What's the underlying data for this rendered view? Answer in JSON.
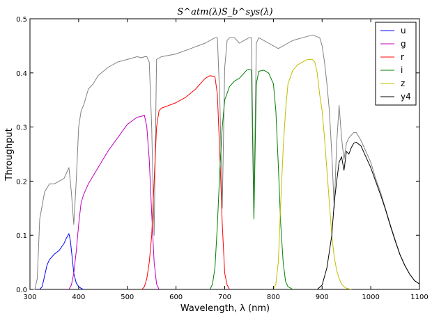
{
  "chart_data": {
    "type": "line",
    "title": "S^atm(λ)S_b^sys(λ)",
    "xlabel": "Wavelength, λ (nm)",
    "ylabel": "Throughput",
    "xlim": [
      300,
      1100
    ],
    "ylim": [
      0,
      0.5
    ],
    "xticks": [
      300,
      400,
      500,
      600,
      700,
      800,
      900,
      1000,
      1100
    ],
    "yticks": [
      0.0,
      0.1,
      0.2,
      0.3,
      0.4,
      0.5
    ],
    "xtick_labels": [
      "300",
      "400",
      "500",
      "600",
      "700",
      "800",
      "900",
      "1000",
      "1100"
    ],
    "ytick_labels": [
      "0.0",
      "0.1",
      "0.2",
      "0.3",
      "0.4",
      "0.5"
    ],
    "grid": false,
    "legend_position": "top-right",
    "series": [
      {
        "name": "u",
        "color": "#0000ff",
        "x": [
          320,
          325,
          330,
          335,
          340,
          350,
          360,
          370,
          375,
          380,
          383,
          386,
          390,
          395,
          400,
          405,
          410
        ],
        "y": [
          0.0,
          0.005,
          0.025,
          0.045,
          0.055,
          0.065,
          0.072,
          0.085,
          0.095,
          0.103,
          0.09,
          0.065,
          0.03,
          0.012,
          0.005,
          0.002,
          0.0
        ]
      },
      {
        "name": "g",
        "color": "#bf00bf",
        "x": [
          380,
          385,
          390,
          395,
          400,
          405,
          410,
          420,
          440,
          460,
          480,
          500,
          520,
          530,
          535,
          540,
          545,
          550,
          555,
          560,
          565
        ],
        "y": [
          0.0,
          0.008,
          0.03,
          0.07,
          0.12,
          0.16,
          0.175,
          0.195,
          0.225,
          0.255,
          0.28,
          0.305,
          0.318,
          0.32,
          0.322,
          0.3,
          0.24,
          0.14,
          0.05,
          0.01,
          0.0
        ]
      },
      {
        "name": "r",
        "color": "#ff0000",
        "x": [
          530,
          535,
          540,
          545,
          550,
          555,
          560,
          565,
          570,
          580,
          600,
          620,
          640,
          660,
          670,
          680,
          685,
          690,
          695,
          700,
          705,
          710
        ],
        "y": [
          0.0,
          0.005,
          0.02,
          0.05,
          0.1,
          0.2,
          0.3,
          0.33,
          0.335,
          0.338,
          0.345,
          0.355,
          0.37,
          0.39,
          0.395,
          0.393,
          0.36,
          0.25,
          0.12,
          0.03,
          0.008,
          0.0
        ]
      },
      {
        "name": "i",
        "color": "#007f00",
        "x": [
          670,
          675,
          680,
          685,
          690,
          695,
          700,
          710,
          720,
          730,
          740,
          745,
          750,
          755,
          760,
          765,
          770,
          780,
          790,
          800,
          805,
          810,
          815,
          820,
          825,
          830,
          840
        ],
        "y": [
          0.0,
          0.01,
          0.04,
          0.12,
          0.22,
          0.3,
          0.35,
          0.375,
          0.385,
          0.39,
          0.4,
          0.405,
          0.407,
          0.405,
          0.13,
          0.38,
          0.403,
          0.405,
          0.4,
          0.38,
          0.33,
          0.23,
          0.12,
          0.05,
          0.015,
          0.005,
          0.0
        ]
      },
      {
        "name": "z",
        "color": "#bfbf00",
        "x": [
          800,
          805,
          810,
          815,
          820,
          825,
          830,
          840,
          850,
          860,
          870,
          880,
          885,
          890,
          895,
          900,
          905,
          910,
          915,
          920,
          925,
          930,
          935,
          940,
          945,
          950,
          960
        ],
        "y": [
          0.0,
          0.01,
          0.05,
          0.16,
          0.26,
          0.33,
          0.38,
          0.405,
          0.415,
          0.42,
          0.425,
          0.425,
          0.42,
          0.4,
          0.36,
          0.33,
          0.28,
          0.22,
          0.16,
          0.1,
          0.06,
          0.035,
          0.02,
          0.01,
          0.005,
          0.002,
          0.0
        ]
      },
      {
        "name": "y4",
        "color": "#000000",
        "x": [
          890,
          900,
          910,
          920,
          925,
          930,
          935,
          940,
          945,
          950,
          955,
          960,
          965,
          970,
          980,
          990,
          1000,
          1010,
          1020,
          1030,
          1040,
          1050,
          1060,
          1070,
          1080,
          1090,
          1100
        ],
        "y": [
          0.0,
          0.008,
          0.04,
          0.1,
          0.16,
          0.2,
          0.235,
          0.245,
          0.22,
          0.255,
          0.25,
          0.262,
          0.27,
          0.272,
          0.265,
          0.245,
          0.225,
          0.2,
          0.175,
          0.148,
          0.118,
          0.09,
          0.064,
          0.044,
          0.028,
          0.016,
          0.01
        ]
      },
      {
        "name": "",
        "color": "#808080",
        "x": [
          300,
          310,
          315,
          320,
          330,
          340,
          350,
          360,
          370,
          375,
          380,
          385,
          390,
          395,
          400,
          405,
          410,
          420,
          430,
          440,
          460,
          480,
          500,
          520,
          530,
          535,
          540,
          545,
          550,
          555,
          560,
          570,
          600,
          630,
          660,
          680,
          685,
          690,
          695,
          700,
          705,
          710,
          720,
          730,
          740,
          750,
          755,
          760,
          765,
          770,
          780,
          790,
          800,
          810,
          820,
          830,
          840,
          860,
          880,
          895,
          900,
          905,
          910,
          915,
          920,
          925,
          930,
          935,
          940,
          945,
          950,
          955,
          960,
          965,
          970,
          980,
          990,
          1000,
          1010,
          1020,
          1030,
          1040,
          1050,
          1060,
          1070,
          1080,
          1090,
          1100
        ],
        "y": [
          0.0,
          0.0,
          0.02,
          0.13,
          0.18,
          0.195,
          0.195,
          0.2,
          0.205,
          0.215,
          0.225,
          0.18,
          0.12,
          0.2,
          0.3,
          0.33,
          0.34,
          0.37,
          0.38,
          0.395,
          0.41,
          0.42,
          0.425,
          0.43,
          0.428,
          0.43,
          0.43,
          0.42,
          0.3,
          0.1,
          0.425,
          0.43,
          0.435,
          0.445,
          0.455,
          0.465,
          0.465,
          0.35,
          0.15,
          0.41,
          0.46,
          0.465,
          0.465,
          0.455,
          0.46,
          0.465,
          0.465,
          0.15,
          0.455,
          0.465,
          0.46,
          0.455,
          0.45,
          0.445,
          0.45,
          0.455,
          0.46,
          0.465,
          0.47,
          0.465,
          0.45,
          0.42,
          0.38,
          0.33,
          0.25,
          0.15,
          0.27,
          0.34,
          0.28,
          0.24,
          0.27,
          0.28,
          0.285,
          0.29,
          0.29,
          0.275,
          0.255,
          0.235,
          0.205,
          0.18,
          0.15,
          0.12,
          0.092,
          0.065,
          0.045,
          0.028,
          0.016,
          0.01
        ]
      }
    ]
  }
}
